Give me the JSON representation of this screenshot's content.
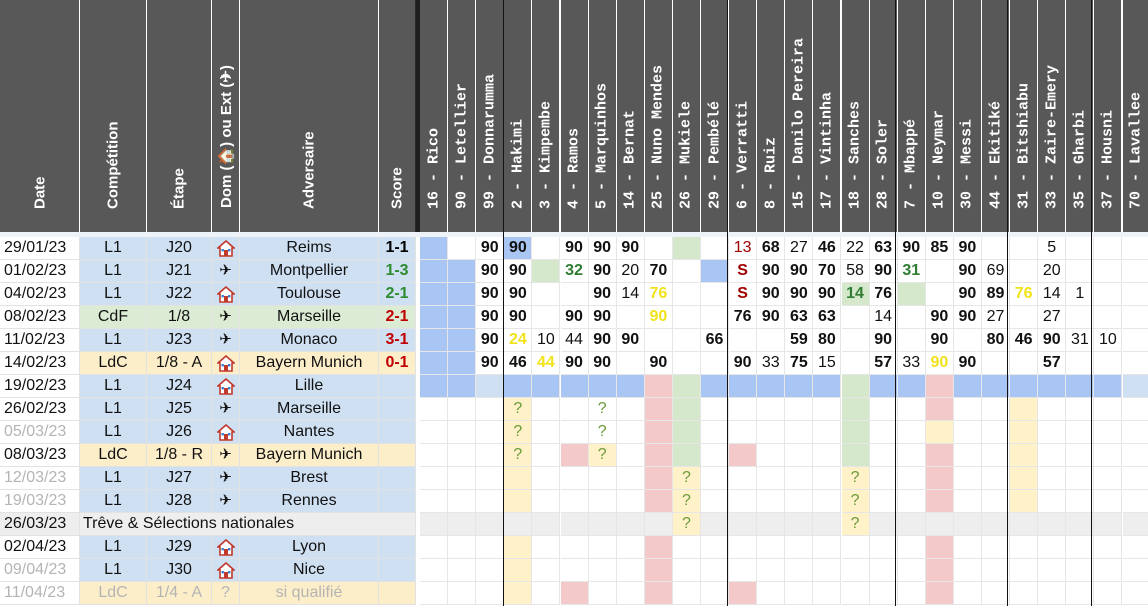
{
  "colors": {
    "header_bg": "#585858",
    "row_blue": "#cfe0f3",
    "row_yellow": "#fdeeca",
    "row_green": "#dcecd4",
    "row_gray": "#eeeeee",
    "player_blue": "#a9c5f3",
    "player_green": "#d5e8cb",
    "player_red": "#f4c9c9",
    "player_yellow": "#fff1c8",
    "score_win": "#2e8b2e",
    "score_loss": "#c00000",
    "score_draw": "#000000",
    "min_green": "#2e7d32",
    "min_yellow": "#f1e31b",
    "min_red": "#a00000"
  },
  "icons": {
    "home": "house-icon",
    "away": "plane-icon"
  },
  "headers": {
    "date": "Date",
    "competition": "Compétition",
    "stage": "Étape",
    "venue": "Dom (🏠) ou Ext (✈)",
    "opponent": "Adversaire",
    "score": "Score"
  },
  "players": [
    "16 - Rico",
    "90 - Letellier",
    "99 - Donnarumma",
    "2 - Hakimi",
    "3 - Kimpembe",
    "4 - Ramos",
    "5 - Marquinhos",
    "14 - Bernat",
    "25 - Nuno Mendes",
    "26 - Mukiele",
    "29 - Pembélé",
    "6 - Verratti",
    "8 - Ruiz",
    "15 - Danilo Pereira",
    "17 - Vintinha",
    "18 - Sanches",
    "28 - Soler",
    "7 - Mbappé",
    "10 - Neymar",
    "30 - Messi",
    "44 - Ekitiké",
    "31 - Bitshiabu",
    "33 - Zaire-Emery",
    "35 - Gharbi",
    "37 - Housni",
    "70 - Lavallee"
  ],
  "matches": [
    {
      "date": "29/01/23",
      "comp": "L1",
      "stage": "J20",
      "venue": "home",
      "opponent": "Reims",
      "score": "1-1",
      "result": "draw",
      "date_gray": false,
      "row": "blue"
    },
    {
      "date": "01/02/23",
      "comp": "L1",
      "stage": "J21",
      "venue": "away",
      "opponent": "Montpellier",
      "score": "1-3",
      "result": "win",
      "date_gray": false,
      "row": "blue"
    },
    {
      "date": "04/02/23",
      "comp": "L1",
      "stage": "J22",
      "venue": "home",
      "opponent": "Toulouse",
      "score": "2-1",
      "result": "win",
      "date_gray": false,
      "row": "blue"
    },
    {
      "date": "08/02/23",
      "comp": "CdF",
      "stage": "1/8",
      "venue": "away",
      "opponent": "Marseille",
      "score": "2-1",
      "result": "loss",
      "date_gray": false,
      "row": "green"
    },
    {
      "date": "11/02/23",
      "comp": "L1",
      "stage": "J23",
      "venue": "away",
      "opponent": "Monaco",
      "score": "3-1",
      "result": "loss",
      "date_gray": false,
      "row": "blue"
    },
    {
      "date": "14/02/23",
      "comp": "LdC",
      "stage": "1/8 - A",
      "venue": "home",
      "opponent": "Bayern Munich",
      "score": "0-1",
      "result": "loss",
      "date_gray": false,
      "row": "yellow"
    },
    {
      "date": "19/02/23",
      "comp": "L1",
      "stage": "J24",
      "venue": "home",
      "opponent": "Lille",
      "score": "",
      "result": "",
      "date_gray": false,
      "row": "blue"
    },
    {
      "date": "26/02/23",
      "comp": "L1",
      "stage": "J25",
      "venue": "away",
      "opponent": "Marseille",
      "score": "",
      "result": "",
      "date_gray": false,
      "row": "blue"
    },
    {
      "date": "05/03/23",
      "comp": "L1",
      "stage": "J26",
      "venue": "home",
      "opponent": "Nantes",
      "score": "",
      "result": "",
      "date_gray": true,
      "row": "blue"
    },
    {
      "date": "08/03/23",
      "comp": "LdC",
      "stage": "1/8 - R",
      "venue": "away",
      "opponent": "Bayern Munich",
      "score": "",
      "result": "",
      "date_gray": false,
      "row": "yellow"
    },
    {
      "date": "12/03/23",
      "comp": "L1",
      "stage": "J27",
      "venue": "away",
      "opponent": "Brest",
      "score": "",
      "result": "",
      "date_gray": true,
      "row": "blue"
    },
    {
      "date": "19/03/23",
      "comp": "L1",
      "stage": "J28",
      "venue": "away",
      "opponent": "Rennes",
      "score": "",
      "result": "",
      "date_gray": true,
      "row": "blue"
    },
    {
      "date": "26/03/23",
      "comp": "",
      "stage": "",
      "venue": "",
      "opponent": "Trêve & Sélections nationales",
      "score": "",
      "result": "",
      "date_gray": false,
      "row": "gray",
      "span": true
    },
    {
      "date": "02/04/23",
      "comp": "L1",
      "stage": "J29",
      "venue": "home",
      "opponent": "Lyon",
      "score": "",
      "result": "",
      "date_gray": false,
      "row": "blue"
    },
    {
      "date": "09/04/23",
      "comp": "L1",
      "stage": "J30",
      "venue": "home",
      "opponent": "Nice",
      "score": "",
      "result": "",
      "date_gray": true,
      "row": "blue"
    },
    {
      "date": "11/04/23",
      "comp": "LdC",
      "stage": "1/4 - A",
      "venue": "unknown",
      "venue_text": "?",
      "opponent": "si qualifié",
      "score": "",
      "result": "",
      "date_gray": true,
      "row": "yellow",
      "all_gray": true
    }
  ],
  "player_grid": [
    [
      "B",
      "",
      "",
      "B",
      "",
      "",
      "",
      "",
      "",
      "G",
      "",
      "",
      "",
      "",
      "",
      "",
      "",
      "",
      "",
      "",
      "",
      "",
      "",
      "",
      "",
      ""
    ],
    [
      "B",
      "B",
      "",
      "",
      "G",
      "",
      "",
      "",
      "",
      "",
      "B",
      "",
      "",
      "",
      "",
      "",
      "",
      "",
      "",
      "",
      "",
      "",
      "",
      "",
      "",
      ""
    ],
    [
      "B",
      "B",
      "",
      "",
      "",
      "",
      "",
      "",
      "",
      "",
      "",
      "",
      "",
      "",
      "",
      "G",
      "",
      "G",
      "",
      "",
      "",
      "",
      "",
      "",
      "",
      ""
    ],
    [
      "B",
      "B",
      "",
      "",
      "",
      "",
      "",
      "",
      "",
      "",
      "",
      "",
      "",
      "",
      "",
      "",
      "",
      "",
      "",
      "",
      "",
      "",
      "",
      "",
      "",
      ""
    ],
    [
      "B",
      "B",
      "",
      "",
      "",
      "",
      "",
      "",
      "",
      "",
      "",
      "",
      "",
      "",
      "",
      "",
      "",
      "",
      "",
      "",
      "",
      "",
      "",
      "",
      "",
      ""
    ],
    [
      "B",
      "B",
      "",
      "",
      "",
      "",
      "",
      "",
      "",
      "",
      "",
      "",
      "",
      "",
      "",
      "",
      "",
      "",
      "",
      "",
      "",
      "",
      "",
      "",
      "",
      ""
    ],
    [
      "B",
      "B",
      "",
      "B",
      "B",
      "B",
      "B",
      "B",
      "R",
      "G",
      "B",
      "B",
      "B",
      "B",
      "B",
      "G",
      "B",
      "B",
      "R",
      "B",
      "B",
      "B",
      "B",
      "B",
      "B",
      ""
    ],
    [
      "",
      "",
      "",
      "Y",
      "",
      "",
      "",
      "",
      "R",
      "G",
      "",
      "",
      "",
      "",
      "",
      "G",
      "",
      "",
      "R",
      "",
      "",
      "Y",
      "",
      "",
      "",
      ""
    ],
    [
      "",
      "",
      "",
      "Y",
      "",
      "",
      "",
      "",
      "R",
      "G",
      "",
      "",
      "",
      "",
      "",
      "G",
      "",
      "",
      "Y",
      "",
      "",
      "Y",
      "",
      "",
      "",
      ""
    ],
    [
      "",
      "",
      "",
      "Y",
      "",
      "R",
      "Y",
      "",
      "R",
      "G",
      "",
      "R",
      "",
      "",
      "",
      "G",
      "",
      "",
      "R",
      "",
      "",
      "Y",
      "",
      "",
      "",
      ""
    ],
    [
      "",
      "",
      "",
      "Y",
      "",
      "",
      "",
      "",
      "R",
      "Y",
      "",
      "",
      "",
      "",
      "",
      "Y",
      "",
      "",
      "R",
      "",
      "",
      "Y",
      "",
      "",
      "",
      ""
    ],
    [
      "",
      "",
      "",
      "Y",
      "",
      "",
      "",
      "",
      "R",
      "Y",
      "",
      "",
      "",
      "",
      "",
      "Y",
      "",
      "",
      "R",
      "",
      "",
      "Y",
      "",
      "",
      "",
      ""
    ],
    [
      "",
      "",
      "",
      "",
      "",
      "",
      "",
      "",
      "",
      "Y",
      "",
      "",
      "",
      "",
      "",
      "Y",
      "",
      "",
      "",
      "",
      "",
      "",
      "",
      "",
      "",
      ""
    ],
    [
      "",
      "",
      "",
      "Y",
      "",
      "",
      "",
      "",
      "R",
      "",
      "",
      "",
      "",
      "",
      "",
      "",
      "",
      "",
      "R",
      "",
      "",
      "",
      "",
      "",
      "",
      ""
    ],
    [
      "",
      "",
      "",
      "Y",
      "",
      "",
      "",
      "",
      "R",
      "",
      "",
      "",
      "",
      "",
      "",
      "",
      "",
      "",
      "R",
      "",
      "",
      "",
      "",
      "",
      "",
      ""
    ],
    [
      "",
      "",
      "",
      "Y",
      "",
      "R",
      "",
      "",
      "R",
      "",
      "",
      "R",
      "",
      "",
      "",
      "",
      "",
      "",
      "R",
      "",
      "",
      "",
      "",
      "",
      "",
      ""
    ]
  ],
  "minutes": [
    [
      "",
      "",
      "90",
      "90",
      "",
      "90",
      "90",
      "90",
      "",
      "",
      "",
      "13",
      "68",
      "27",
      "46",
      "22",
      "63",
      "90",
      "85",
      "90",
      "",
      "",
      "5",
      "",
      "",
      ""
    ],
    [
      "",
      "",
      "90",
      "90",
      "",
      "32",
      "90",
      "20",
      "70",
      "",
      "",
      "S",
      "90",
      "90",
      "70",
      "58",
      "90",
      "31",
      "",
      "90",
      "69",
      "",
      "20",
      "",
      "",
      ""
    ],
    [
      "",
      "",
      "90",
      "90",
      "",
      "",
      "90",
      "14",
      "76",
      "",
      "",
      "S",
      "90",
      "90",
      "90",
      "14",
      "76",
      "",
      "",
      "90",
      "89",
      "76",
      "14",
      "1",
      "",
      ""
    ],
    [
      "",
      "",
      "90",
      "90",
      "",
      "90",
      "90",
      "",
      "90",
      "",
      "",
      "76",
      "90",
      "63",
      "63",
      "",
      "14",
      "",
      "90",
      "90",
      "27",
      "",
      "27",
      "",
      "",
      ""
    ],
    [
      "",
      "",
      "90",
      "24",
      "10",
      "44",
      "90",
      "90",
      "",
      "",
      "66",
      "",
      "",
      "59",
      "80",
      "",
      "90",
      "",
      "90",
      "",
      "80",
      "46",
      "90",
      "31",
      "10",
      ""
    ],
    [
      "",
      "",
      "90",
      "46",
      "44",
      "90",
      "90",
      "",
      "90",
      "",
      "",
      "90",
      "33",
      "75",
      "15",
      "",
      "57",
      "33",
      "90",
      "90",
      "",
      "",
      "57",
      "",
      "",
      ""
    ],
    [
      "",
      "",
      "",
      "",
      "",
      "",
      "",
      "",
      "",
      "",
      "",
      "",
      "",
      "",
      "",
      "",
      "",
      "",
      "",
      "",
      "",
      "",
      "",
      "",
      "",
      ""
    ],
    [
      "",
      "",
      "",
      "?",
      "",
      "",
      "?",
      "",
      "",
      "",
      "",
      "",
      "",
      "",
      "",
      "",
      "",
      "",
      "",
      "",
      "",
      "",
      "",
      "",
      "",
      ""
    ],
    [
      "",
      "",
      "",
      "?",
      "",
      "",
      "?",
      "",
      "",
      "",
      "",
      "",
      "",
      "",
      "",
      "",
      "",
      "",
      "",
      "",
      "",
      "",
      "",
      "",
      "",
      ""
    ],
    [
      "",
      "",
      "",
      "?",
      "",
      "",
      "?",
      "",
      "",
      "",
      "",
      "",
      "",
      "",
      "",
      "",
      "",
      "",
      "",
      "",
      "",
      "",
      "",
      "",
      "",
      ""
    ],
    [
      "",
      "",
      "",
      "",
      "",
      "",
      "",
      "",
      "",
      "?",
      "",
      "",
      "",
      "",
      "",
      "?",
      "",
      "",
      "",
      "",
      "",
      "",
      "",
      "",
      "",
      ""
    ],
    [
      "",
      "",
      "",
      "",
      "",
      "",
      "",
      "",
      "",
      "?",
      "",
      "",
      "",
      "",
      "",
      "?",
      "",
      "",
      "",
      "",
      "",
      "",
      "",
      "",
      "",
      ""
    ],
    [
      "",
      "",
      "",
      "",
      "",
      "",
      "",
      "",
      "",
      "?",
      "",
      "",
      "",
      "",
      "",
      "?",
      "",
      "",
      "",
      "",
      "",
      "",
      "",
      "",
      "",
      ""
    ],
    [
      "",
      "",
      "",
      "",
      "",
      "",
      "",
      "",
      "",
      "",
      "",
      "",
      "",
      "",
      "",
      "",
      "",
      "",
      "",
      "",
      "",
      "",
      "",
      "",
      "",
      ""
    ],
    [
      "",
      "",
      "",
      "",
      "",
      "",
      "",
      "",
      "",
      "",
      "",
      "",
      "",
      "",
      "",
      "",
      "",
      "",
      "",
      "",
      "",
      "",
      "",
      "",
      "",
      ""
    ],
    [
      "",
      "",
      "",
      "",
      "",
      "",
      "",
      "",
      "",
      "",
      "",
      "",
      "",
      "",
      "",
      "",
      "",
      "",
      "",
      "",
      "",
      "",
      "",
      "",
      "",
      ""
    ]
  ],
  "minute_styles": [
    [
      "",
      "",
      "",
      "",
      "",
      "",
      "",
      "",
      "",
      "",
      "",
      "r",
      "",
      "n",
      "",
      "n",
      "",
      "",
      "",
      "",
      "",
      "",
      "n",
      "",
      "",
      ""
    ],
    [
      "",
      "",
      "",
      "",
      "",
      "g",
      "",
      "n",
      "",
      "",
      "",
      "s",
      "",
      "",
      "",
      "n",
      "",
      "g",
      "",
      "",
      "n",
      "",
      "n",
      "",
      "",
      ""
    ],
    [
      "",
      "",
      "",
      "",
      "",
      "",
      "",
      "n",
      "y",
      "",
      "",
      "s",
      "",
      "",
      "",
      "g",
      "",
      "",
      "",
      "",
      "",
      "y",
      "n",
      "n",
      "",
      ""
    ],
    [
      "",
      "",
      "",
      "",
      "",
      "",
      "",
      "",
      "y",
      "",
      "",
      "",
      "",
      "",
      "",
      "",
      "n",
      "",
      "",
      "",
      "n",
      "",
      "n",
      "",
      "",
      ""
    ],
    [
      "",
      "",
      "",
      "y",
      "n",
      "n",
      "",
      "",
      "",
      "",
      "",
      "",
      "",
      "",
      "",
      "",
      "",
      "",
      "",
      "",
      "",
      "",
      "",
      "n",
      "n",
      ""
    ],
    [
      "",
      "",
      "",
      "",
      "y",
      "",
      "",
      "",
      "",
      "",
      "",
      "",
      "n",
      "",
      "n",
      "",
      "",
      "n",
      "y",
      "",
      "",
      "",
      "",
      "",
      "",
      ""
    ],
    [
      "",
      "",
      "",
      "",
      "",
      "",
      "",
      "",
      "",
      "",
      "",
      "",
      "",
      "",
      "",
      "",
      "",
      "",
      "",
      "",
      "",
      "",
      "",
      "",
      "",
      ""
    ],
    [
      "",
      "",
      "",
      "q",
      "",
      "",
      "q",
      "",
      "",
      "",
      "",
      "",
      "",
      "",
      "",
      "",
      "",
      "",
      "",
      "",
      "",
      "",
      "",
      "",
      "",
      ""
    ],
    [
      "",
      "",
      "",
      "q",
      "",
      "",
      "q",
      "",
      "",
      "",
      "",
      "",
      "",
      "",
      "",
      "",
      "",
      "",
      "",
      "",
      "",
      "",
      "",
      "",
      "",
      ""
    ],
    [
      "",
      "",
      "",
      "q",
      "",
      "",
      "q",
      "",
      "",
      "",
      "",
      "",
      "",
      "",
      "",
      "",
      "",
      "",
      "",
      "",
      "",
      "",
      "",
      "",
      "",
      ""
    ],
    [
      "",
      "",
      "",
      "",
      "",
      "",
      "",
      "",
      "",
      "q",
      "",
      "",
      "",
      "",
      "",
      "q",
      "",
      "",
      "",
      "",
      "",
      "",
      "",
      "",
      "",
      ""
    ],
    [
      "",
      "",
      "",
      "",
      "",
      "",
      "",
      "",
      "",
      "q",
      "",
      "",
      "",
      "",
      "",
      "q",
      "",
      "",
      "",
      "",
      "",
      "",
      "",
      "",
      "",
      ""
    ],
    [
      "",
      "",
      "",
      "",
      "",
      "",
      "",
      "",
      "",
      "q",
      "",
      "",
      "",
      "",
      "",
      "q",
      "",
      "",
      "",
      "",
      "",
      "",
      "",
      "",
      "",
      ""
    ],
    [
      "",
      "",
      "",
      "",
      "",
      "",
      "",
      "",
      "",
      "",
      "",
      "",
      "",
      "",
      "",
      "",
      "",
      "",
      "",
      "",
      "",
      "",
      "",
      "",
      "",
      ""
    ],
    [
      "",
      "",
      "",
      "",
      "",
      "",
      "",
      "",
      "",
      "",
      "",
      "",
      "",
      "",
      "",
      "",
      "",
      "",
      "",
      "",
      "",
      "",
      "",
      "",
      "",
      ""
    ],
    [
      "",
      "",
      "",
      "",
      "",
      "",
      "",
      "",
      "",
      "",
      "",
      "",
      "",
      "",
      "",
      "",
      "",
      "",
      "",
      "",
      "",
      "",
      "",
      "",
      "",
      ""
    ]
  ]
}
